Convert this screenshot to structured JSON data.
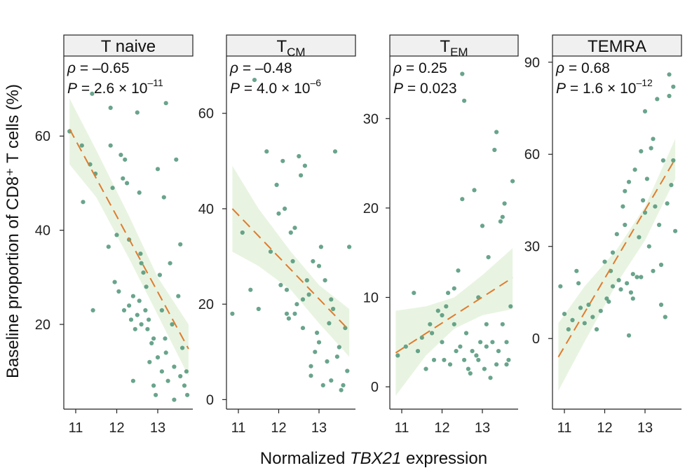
{
  "chart_data": {
    "type": "scatter",
    "ylabel": "Baseline proportion of CD8⁺ T cells (%)",
    "xlabel": "Normalized TBX21 expression",
    "xlabel_parts": {
      "pre": "Normalized ",
      "italic": "TBX21",
      "post": " expression"
    },
    "x_ticks": [
      11,
      12,
      13
    ],
    "x_tick_labels": [
      "11",
      "12",
      "13"
    ],
    "colors": {
      "points": "#4f9478",
      "trend": "#e07b2e",
      "band": "#e4f2dc",
      "strip": "#f0f0f0"
    },
    "panels": [
      {
        "label": "T naive",
        "label_main": "T naive",
        "label_sub": "",
        "rho": "ρ = –0.65",
        "p_prefix": "P = 2.6 × 10",
        "p_exp": "–11",
        "xlim": [
          10.8,
          13.8
        ],
        "ylim": [
          2,
          77
        ],
        "y_ticks": [
          20,
          40,
          60
        ],
        "y_tick_labels": [
          "20",
          "40",
          "60"
        ],
        "trend": [
          [
            10.85,
            61.5
          ],
          [
            13.75,
            14.8
          ]
        ],
        "band": {
          "x": [
            10.85,
            11.5,
            12.3,
            13.0,
            13.75
          ],
          "upper": [
            68,
            57,
            43,
            30,
            20
          ],
          "lower": [
            54,
            47,
            34,
            22,
            9
          ]
        },
        "points": [
          [
            10.85,
            61
          ],
          [
            11.15,
            58
          ],
          [
            11.18,
            46
          ],
          [
            11.35,
            54
          ],
          [
            11.42,
            23
          ],
          [
            11.48,
            52
          ],
          [
            11.8,
            36.5
          ],
          [
            11.85,
            58
          ],
          [
            11.9,
            49
          ],
          [
            11.95,
            29
          ],
          [
            12.0,
            39
          ],
          [
            12.05,
            27
          ],
          [
            12.1,
            56
          ],
          [
            12.15,
            51
          ],
          [
            12.2,
            55
          ],
          [
            12.3,
            38
          ],
          [
            12.25,
            50
          ],
          [
            12.18,
            23
          ],
          [
            12.3,
            24
          ],
          [
            12.35,
            21
          ],
          [
            12.4,
            26
          ],
          [
            12.45,
            19
          ],
          [
            12.5,
            22
          ],
          [
            12.55,
            48
          ],
          [
            12.58,
            35
          ],
          [
            12.6,
            33
          ],
          [
            12.65,
            31
          ],
          [
            12.55,
            25
          ],
          [
            12.7,
            23
          ],
          [
            12.72,
            28
          ],
          [
            12.78,
            21
          ],
          [
            12.8,
            12
          ],
          [
            12.85,
            16
          ],
          [
            12.9,
            7
          ],
          [
            12.95,
            5
          ],
          [
            13.0,
            13
          ],
          [
            13.05,
            30.5
          ],
          [
            13.1,
            10
          ],
          [
            13.15,
            47
          ],
          [
            13.18,
            17
          ],
          [
            13.2,
            14
          ],
          [
            13.25,
            8
          ],
          [
            13.3,
            33
          ],
          [
            13.35,
            20
          ],
          [
            13.4,
            11
          ],
          [
            13.45,
            55
          ],
          [
            13.5,
            26
          ],
          [
            13.55,
            37
          ],
          [
            13.6,
            15
          ],
          [
            13.65,
            7
          ],
          [
            13.7,
            10
          ],
          [
            13.72,
            5
          ],
          [
            11.4,
            69
          ],
          [
            11.85,
            66
          ],
          [
            12.5,
            65
          ],
          [
            13.2,
            67
          ],
          [
            13.0,
            53
          ],
          [
            12.6,
            20
          ],
          [
            12.4,
            8
          ],
          [
            13.1,
            23
          ],
          [
            13.4,
            4
          ],
          [
            13.55,
            9
          ],
          [
            12.9,
            17
          ],
          [
            12.75,
            19
          ]
        ]
      },
      {
        "label": "TCM",
        "label_main": "T",
        "label_sub": "CM",
        "rho": "ρ = –0.48",
        "p_prefix": "P = 4.0 × 10",
        "p_exp": "–6",
        "xlim": [
          10.8,
          13.8
        ],
        "ylim": [
          -2,
          72
        ],
        "y_ticks": [
          0,
          20,
          40,
          60
        ],
        "y_tick_labels": [
          "0",
          "20",
          "40",
          "60"
        ],
        "trend": [
          [
            10.85,
            40.0
          ],
          [
            13.75,
            14.5
          ]
        ],
        "band": {
          "x": [
            10.85,
            11.5,
            12.3,
            13.0,
            13.75
          ],
          "upper": [
            49,
            40,
            31,
            24,
            19
          ],
          "lower": [
            31,
            28,
            23,
            16,
            9
          ]
        },
        "points": [
          [
            10.85,
            18
          ],
          [
            11.1,
            35
          ],
          [
            11.3,
            23
          ],
          [
            11.4,
            67
          ],
          [
            11.5,
            19
          ],
          [
            11.7,
            52
          ],
          [
            11.8,
            31
          ],
          [
            11.95,
            45
          ],
          [
            12.0,
            39
          ],
          [
            12.05,
            24
          ],
          [
            12.1,
            50
          ],
          [
            12.15,
            40
          ],
          [
            12.2,
            18
          ],
          [
            12.25,
            17
          ],
          [
            12.3,
            35
          ],
          [
            12.35,
            29
          ],
          [
            12.4,
            36
          ],
          [
            12.45,
            20
          ],
          [
            12.5,
            51
          ],
          [
            12.55,
            47
          ],
          [
            12.6,
            21
          ],
          [
            12.65,
            49
          ],
          [
            12.7,
            25
          ],
          [
            12.75,
            22
          ],
          [
            12.8,
            7
          ],
          [
            12.85,
            29
          ],
          [
            12.9,
            10
          ],
          [
            12.95,
            14
          ],
          [
            13.0,
            28
          ],
          [
            13.05,
            32
          ],
          [
            13.1,
            3
          ],
          [
            13.15,
            25
          ],
          [
            13.2,
            8
          ],
          [
            13.25,
            16
          ],
          [
            13.3,
            4
          ],
          [
            13.35,
            19
          ],
          [
            13.4,
            52
          ],
          [
            13.45,
            9
          ],
          [
            13.5,
            11
          ],
          [
            13.55,
            2
          ],
          [
            13.6,
            3
          ],
          [
            13.65,
            15
          ],
          [
            13.7,
            6
          ],
          [
            13.75,
            32
          ],
          [
            12.2,
            23
          ],
          [
            12.6,
            15
          ],
          [
            13.0,
            12
          ],
          [
            13.3,
            21
          ],
          [
            12.4,
            18
          ],
          [
            12.8,
            5
          ]
        ]
      },
      {
        "label": "TEM",
        "label_main": "T",
        "label_sub": "EM",
        "rho": "ρ = 0.25",
        "p_prefix": "P = 0.023",
        "p_exp": "",
        "xlim": [
          10.8,
          13.8
        ],
        "ylim": [
          -2.5,
          37
        ],
        "y_ticks": [
          0,
          10,
          20,
          30
        ],
        "y_tick_labels": [
          "0",
          "10",
          "20",
          "30"
        ],
        "trend": [
          [
            10.85,
            3.8
          ],
          [
            13.75,
            12.2
          ]
        ],
        "band": {
          "x": [
            10.85,
            11.6,
            12.3,
            13.0,
            13.75
          ],
          "upper": [
            8.5,
            9.0,
            10.0,
            12.5,
            15.5
          ],
          "lower": [
            -1.0,
            3.5,
            6.5,
            8.0,
            8.7
          ]
        },
        "points": [
          [
            10.9,
            3.5
          ],
          [
            11.1,
            4.5
          ],
          [
            11.3,
            10.5
          ],
          [
            11.4,
            4
          ],
          [
            11.5,
            5.5
          ],
          [
            11.6,
            2
          ],
          [
            11.7,
            7
          ],
          [
            11.75,
            6
          ],
          [
            11.8,
            3
          ],
          [
            11.9,
            8.5
          ],
          [
            12.0,
            5
          ],
          [
            12.05,
            3
          ],
          [
            12.1,
            9
          ],
          [
            12.15,
            10.5
          ],
          [
            12.2,
            2.5
          ],
          [
            12.3,
            11
          ],
          [
            12.35,
            4
          ],
          [
            12.4,
            13
          ],
          [
            12.45,
            4.5
          ],
          [
            12.5,
            21
          ],
          [
            12.55,
            3
          ],
          [
            12.6,
            6
          ],
          [
            12.65,
            2
          ],
          [
            12.7,
            1.5
          ],
          [
            12.75,
            4
          ],
          [
            12.8,
            22
          ],
          [
            12.85,
            3.5
          ],
          [
            12.9,
            10
          ],
          [
            12.95,
            5
          ],
          [
            13.0,
            18
          ],
          [
            13.05,
            2
          ],
          [
            13.1,
            4.5
          ],
          [
            13.15,
            14.5
          ],
          [
            13.2,
            1
          ],
          [
            13.25,
            5
          ],
          [
            13.3,
            26.5
          ],
          [
            13.35,
            2.5
          ],
          [
            13.4,
            4
          ],
          [
            13.45,
            18.5
          ],
          [
            13.5,
            7
          ],
          [
            13.55,
            20.5
          ],
          [
            13.6,
            5
          ],
          [
            13.65,
            3
          ],
          [
            13.7,
            9
          ],
          [
            13.75,
            23
          ],
          [
            12.55,
            32
          ],
          [
            12.5,
            35
          ],
          [
            13.35,
            28.5
          ],
          [
            13.5,
            19
          ],
          [
            12.0,
            8
          ],
          [
            12.3,
            7
          ],
          [
            12.9,
            3
          ],
          [
            13.1,
            7
          ],
          [
            13.6,
            2.5
          ]
        ]
      },
      {
        "label": "TEMRA",
        "label_main": "TEMRA",
        "label_sub": "",
        "rho": "ρ = 0.68",
        "p_prefix": "P = 1.6 × 10",
        "p_exp": "–12",
        "xlim": [
          10.8,
          13.8
        ],
        "ylim": [
          -23,
          92
        ],
        "y_ticks": [
          0,
          30,
          60,
          90
        ],
        "y_tick_labels": [
          "0",
          "30",
          "60",
          "90"
        ],
        "trend": [
          [
            10.85,
            -6.0
          ],
          [
            13.75,
            58.5
          ]
        ],
        "band": {
          "x": [
            10.85,
            11.5,
            12.3,
            13.0,
            13.75
          ],
          "upper": [
            5,
            17,
            29,
            43,
            65
          ],
          "lower": [
            -17,
            -1,
            18,
            32,
            52
          ]
        },
        "points": [
          [
            10.9,
            17
          ],
          [
            11.0,
            8
          ],
          [
            11.1,
            3
          ],
          [
            11.2,
            6
          ],
          [
            11.3,
            22
          ],
          [
            11.35,
            18
          ],
          [
            11.4,
            10
          ],
          [
            11.5,
            5
          ],
          [
            11.6,
            11
          ],
          [
            11.7,
            7
          ],
          [
            11.8,
            3
          ],
          [
            11.9,
            9
          ],
          [
            12.0,
            25
          ],
          [
            12.05,
            13
          ],
          [
            12.1,
            12
          ],
          [
            12.15,
            22
          ],
          [
            12.2,
            28
          ],
          [
            12.3,
            34
          ],
          [
            12.35,
            19
          ],
          [
            12.4,
            16
          ],
          [
            12.45,
            43
          ],
          [
            12.5,
            37
          ],
          [
            12.55,
            18
          ],
          [
            12.6,
            51
          ],
          [
            12.65,
            15
          ],
          [
            12.7,
            13
          ],
          [
            12.75,
            55
          ],
          [
            12.8,
            20
          ],
          [
            12.85,
            33
          ],
          [
            12.9,
            61
          ],
          [
            12.95,
            45
          ],
          [
            13.0,
            74
          ],
          [
            13.05,
            52
          ],
          [
            13.1,
            30
          ],
          [
            13.15,
            62
          ],
          [
            13.2,
            22
          ],
          [
            13.25,
            43
          ],
          [
            13.3,
            78
          ],
          [
            13.35,
            37
          ],
          [
            13.4,
            11
          ],
          [
            13.45,
            58
          ],
          [
            13.5,
            7
          ],
          [
            13.55,
            44
          ],
          [
            13.6,
            86
          ],
          [
            13.65,
            50
          ],
          [
            13.7,
            58
          ],
          [
            13.75,
            35
          ],
          [
            12.5,
            48
          ],
          [
            12.9,
            20
          ],
          [
            13.4,
            24
          ],
          [
            13.2,
            65
          ],
          [
            12.7,
            21
          ],
          [
            12.2,
            17
          ],
          [
            12.6,
            1
          ],
          [
            13.0,
            41
          ],
          [
            13.6,
            79
          ],
          [
            13.7,
            82
          ]
        ]
      }
    ]
  }
}
